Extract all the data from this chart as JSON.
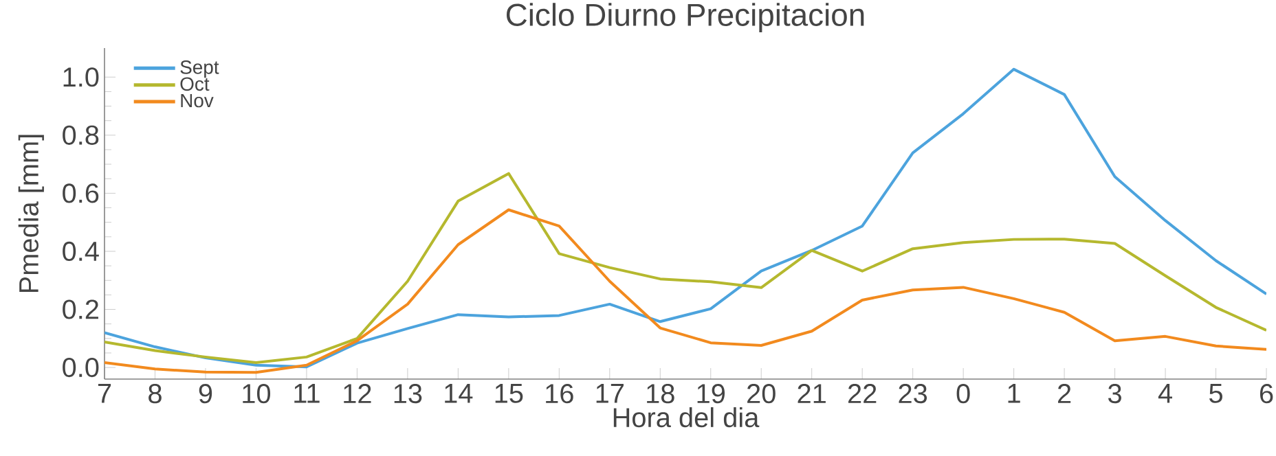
{
  "chart_data": {
    "type": "line",
    "title": "Ciclo Diurno Precipitacion",
    "xlabel": "Hora del dia",
    "ylabel": "Pmedia [mm]",
    "categories": [
      "7",
      "8",
      "9",
      "10",
      "11",
      "12",
      "13",
      "14",
      "15",
      "16",
      "17",
      "18",
      "19",
      "20",
      "21",
      "22",
      "23",
      "0",
      "1",
      "2",
      "3",
      "4",
      "5",
      "6"
    ],
    "ylim": [
      -0.04,
      1.1
    ],
    "yticks": [
      {
        "value": 0,
        "label": "0.0"
      },
      0.2,
      0.4,
      0.6,
      0.8,
      {
        "value": 1,
        "label": "1.0"
      }
    ],
    "legend": "top left",
    "marker": "none",
    "series": [
      {
        "name": "Sept",
        "color": "#4ca3dd",
        "values": [
          0.12,
          0.071,
          0.033,
          0.008,
          0.002,
          0.084,
          0.134,
          0.182,
          0.174,
          0.179,
          0.218,
          0.158,
          0.202,
          0.332,
          0.403,
          0.487,
          0.739,
          0.874,
          1.027,
          0.94,
          0.657,
          0.506,
          0.368,
          0.253
        ]
      },
      {
        "name": "Oct",
        "color": "#b5b82e",
        "values": [
          0.088,
          0.058,
          0.036,
          0.017,
          0.036,
          0.1,
          0.297,
          0.573,
          0.668,
          0.392,
          0.344,
          0.305,
          0.295,
          0.275,
          0.403,
          0.332,
          0.409,
          0.43,
          0.441,
          0.442,
          0.427,
          0.316,
          0.207,
          0.128
        ]
      },
      {
        "name": "Nov",
        "color": "#f28a1e",
        "values": [
          0.017,
          -0.005,
          -0.016,
          -0.017,
          0.008,
          0.092,
          0.218,
          0.423,
          0.543,
          0.487,
          0.297,
          0.136,
          0.085,
          0.076,
          0.125,
          0.232,
          0.267,
          0.276,
          0.237,
          0.19,
          0.092,
          0.107,
          0.074,
          0.062
        ]
      }
    ]
  }
}
